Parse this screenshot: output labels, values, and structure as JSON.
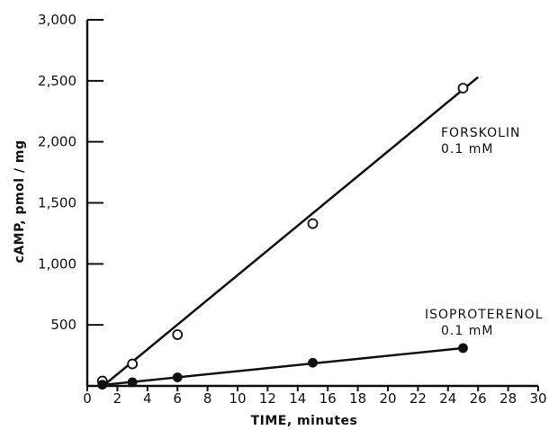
{
  "chart_data": {
    "type": "scatter",
    "title": "",
    "xlabel": "TIME, minutes",
    "ylabel": "cAMP, pmol / mg",
    "xlim": [
      0,
      30
    ],
    "ylim": [
      0,
      3000
    ],
    "x_ticks": [
      0,
      2,
      4,
      6,
      8,
      10,
      12,
      14,
      16,
      18,
      20,
      22,
      24,
      26,
      28,
      30
    ],
    "x_tick_labels": [
      "0",
      "2",
      "4",
      "6",
      "8",
      "10",
      "12",
      "14",
      "16",
      "18",
      "20",
      "22",
      "24",
      "26",
      "28",
      "30"
    ],
    "y_ticks": [
      500,
      1000,
      1500,
      2000,
      2500,
      3000
    ],
    "y_tick_labels": [
      "500",
      "1,000",
      "1,500",
      "2,000",
      "2,500",
      "3,000"
    ],
    "grid": false,
    "series": [
      {
        "name": "FORSKOLIN 0.1 mM",
        "marker": "open-circle",
        "x": [
          1,
          3,
          6,
          15,
          25
        ],
        "y": [
          40,
          180,
          420,
          1330,
          2440
        ],
        "fit_line": {
          "x": [
            1,
            26
          ],
          "y": [
            -5,
            2530
          ]
        }
      },
      {
        "name": "ISOPROTERENOL 0.1 mM",
        "marker": "filled-circle",
        "x": [
          1,
          3,
          6,
          15,
          25
        ],
        "y": [
          10,
          30,
          70,
          190,
          310
        ],
        "fit_line": {
          "x": [
            0.8,
            25
          ],
          "y": [
            5,
            310
          ]
        }
      }
    ],
    "annotations": [
      {
        "line1": "FORSKOLIN",
        "line2": "0.1 mM"
      },
      {
        "line1": "ISOPROTERENOL",
        "line2": "0.1 mM"
      }
    ]
  }
}
